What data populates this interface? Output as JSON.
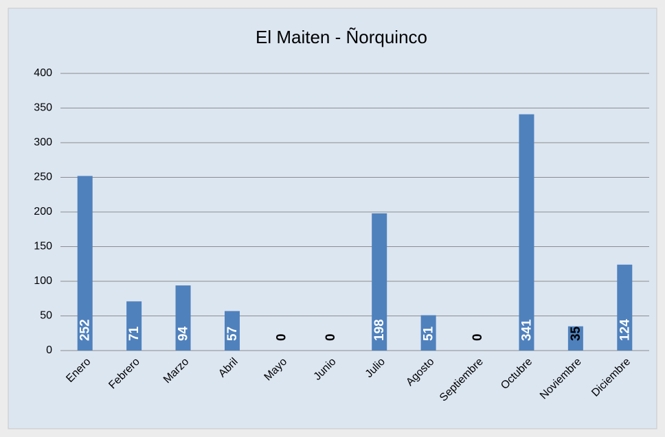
{
  "chart_data": {
    "type": "bar",
    "title": "El Maiten - Ñorquinco",
    "categories": [
      "Enero",
      "Febrero",
      "Marzo",
      "Abril",
      "Mayo",
      "Junio",
      "Julio",
      "Agosto",
      "Septiembre",
      "Octubre",
      "Noviembre",
      "Diciembre"
    ],
    "values": [
      252,
      71,
      94,
      57,
      0,
      0,
      198,
      51,
      0,
      341,
      35,
      124
    ],
    "color": "#4f81bd",
    "ylim": [
      0,
      400
    ],
    "yticks": [
      0,
      50,
      100,
      150,
      200,
      250,
      300,
      350,
      400
    ],
    "grid": true
  }
}
